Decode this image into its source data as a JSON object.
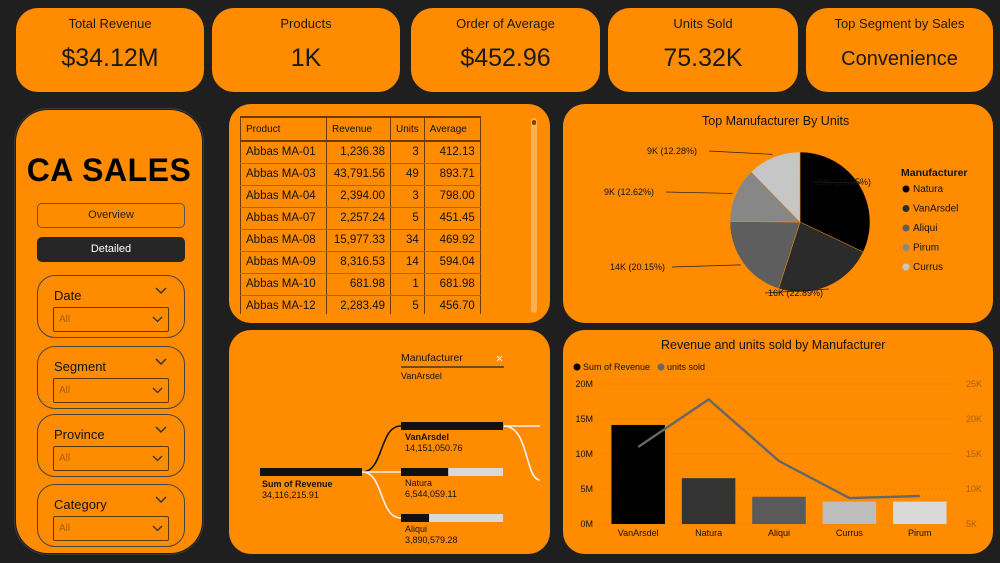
{
  "kpis": [
    {
      "label": "Total Revenue",
      "value": "$34.12M"
    },
    {
      "label": "Products",
      "value": "1K"
    },
    {
      "label": "Order of Average",
      "value": "$452.96"
    },
    {
      "label": "Units Sold",
      "value": "75.32K"
    },
    {
      "label": "Top Segment by Sales",
      "value": "Convenience"
    }
  ],
  "sidebar": {
    "title": "CA SALES",
    "nav": [
      {
        "label": "Overview"
      },
      {
        "label": "Detailed"
      }
    ],
    "slicers": [
      {
        "label": "Date",
        "value": "All"
      },
      {
        "label": "Segment",
        "value": "All"
      },
      {
        "label": "Province",
        "value": "All"
      },
      {
        "label": "Category",
        "value": "All"
      }
    ]
  },
  "table": {
    "columns": [
      "Product",
      "Revenue",
      "Units",
      "Average"
    ],
    "rows": [
      [
        "Abbas MA-01",
        "1,236.38",
        "3",
        "412.13"
      ],
      [
        "Abbas MA-03",
        "43,791.56",
        "49",
        "893.71"
      ],
      [
        "Abbas MA-04",
        "2,394.00",
        "3",
        "798.00"
      ],
      [
        "Abbas MA-07",
        "2,257.24",
        "5",
        "451.45"
      ],
      [
        "Abbas MA-08",
        "15,977.33",
        "34",
        "469.92"
      ],
      [
        "Abbas MA-09",
        "8,316.53",
        "14",
        "594.04"
      ],
      [
        "Abbas MA-10",
        "681.98",
        "1",
        "681.98"
      ],
      [
        "Abbas MA-12",
        "2,283.49",
        "5",
        "456.70"
      ]
    ]
  },
  "pie": {
    "title": "Top Manufacturer By Units",
    "legend_title": "Manufacturer",
    "slices": [
      {
        "name": "Natura",
        "label": "23K (32.05%)",
        "pct": 32.05,
        "color": "#000000"
      },
      {
        "name": "VanArsdel",
        "label": "16K (22.89%)",
        "pct": 22.89,
        "color": "#2b2b2b"
      },
      {
        "name": "Aliqui",
        "label": "14K (20.15%)",
        "pct": 20.15,
        "color": "#5e5e5e"
      },
      {
        "name": "Pirum",
        "label": "9K (12.62%)",
        "pct": 12.62,
        "color": "#878787"
      },
      {
        "name": "Currus",
        "label": "9K (12.28%)",
        "pct": 12.28,
        "color": "#c6c6c6"
      }
    ]
  },
  "decomp": {
    "field_title": "Manufacturer",
    "filter_value": "VanArsdel",
    "close_icon": "close-icon",
    "root": {
      "label": "Sum of Revenue",
      "value": "34,116,215.91"
    },
    "nodes": [
      {
        "label": "VanArsdel",
        "value": "14,151,050.76",
        "fraction": 1.0
      },
      {
        "label": "Natura",
        "value": "6,544,059.11",
        "fraction": 0.4625
      },
      {
        "label": "Aliqui",
        "value": "3,890,579.28",
        "fraction": 0.275
      }
    ]
  },
  "chart_data": {
    "type": "bar",
    "title": "Revenue and units sold by Manufacturer",
    "categories": [
      "VanArsdel",
      "Natura",
      "Aliqui",
      "Currus",
      "Pirum"
    ],
    "series": [
      {
        "name": "Sum of Revenue",
        "type": "bar",
        "axis": "left",
        "values": [
          14151050.76,
          6544059.11,
          3890579.28,
          3200000,
          3200000
        ],
        "colors": [
          "#000000",
          "#333333",
          "#5a5a5a",
          "#bdbdbd",
          "#d9d9d9"
        ]
      },
      {
        "name": "units sold",
        "type": "line",
        "axis": "right",
        "values": [
          16000,
          22800,
          14000,
          8700,
          9000
        ],
        "color": "#666666"
      }
    ],
    "y_left": {
      "ticks": [
        "0M",
        "5M",
        "10M",
        "15M",
        "20M"
      ],
      "ylim": [
        0,
        20000000
      ]
    },
    "y_right": {
      "ticks": [
        "5K",
        "10K",
        "15K",
        "20K",
        "25K"
      ],
      "ylim": [
        5000,
        25000
      ]
    },
    "legend": "top-left",
    "grid": true
  }
}
